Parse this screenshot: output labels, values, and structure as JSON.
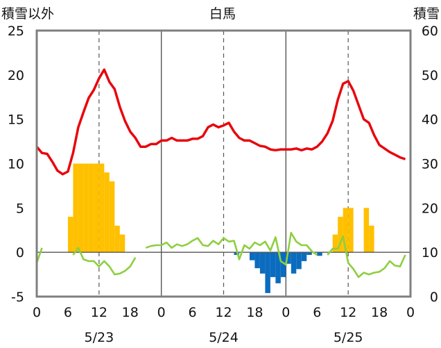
{
  "chart_data": {
    "type": "bar",
    "title": "白馬",
    "ylabel_left": "積雪以外",
    "ylabel_right": "積雪",
    "y_left": {
      "min": -5,
      "max": 25,
      "ticks": [
        "-5",
        "0",
        "5",
        "10",
        "15",
        "20",
        "25"
      ]
    },
    "y_right": {
      "min": 0,
      "max": 60,
      "ticks": [
        "0",
        "10",
        "20",
        "30",
        "40",
        "50",
        "60"
      ]
    },
    "x_hours": {
      "min": 0,
      "max": 72
    },
    "x_ticks": [
      {
        "hour": 0,
        "label": "0"
      },
      {
        "hour": 6,
        "label": "6"
      },
      {
        "hour": 12,
        "label": "12"
      },
      {
        "hour": 18,
        "label": "18"
      },
      {
        "hour": 24,
        "label": "0"
      },
      {
        "hour": 30,
        "label": "6"
      },
      {
        "hour": 36,
        "label": "12"
      },
      {
        "hour": 42,
        "label": "18"
      },
      {
        "hour": 48,
        "label": "0"
      },
      {
        "hour": 54,
        "label": "6"
      },
      {
        "hour": 60,
        "label": "12"
      },
      {
        "hour": 66,
        "label": "18"
      },
      {
        "hour": 72,
        "label": "0"
      }
    ],
    "date_labels": [
      {
        "hour": 12,
        "label": "5/23"
      },
      {
        "hour": 36,
        "label": "5/24"
      },
      {
        "hour": 60,
        "label": "5/25"
      }
    ],
    "day_boundaries": [
      24,
      48
    ],
    "dashed_hours": [
      12,
      36,
      60
    ],
    "colors": {
      "temperature": "#e8060c",
      "snow_depth": "#8dcf3f",
      "precip_positive": "#ffc000",
      "precip_negative": "#0b6cbf",
      "frame": "#7f7f7f",
      "grid": "#555555"
    },
    "series": [
      {
        "key": "temperature",
        "axis": "left",
        "style": "line",
        "points": [
          [
            0,
            11.9
          ],
          [
            1,
            11.2
          ],
          [
            2,
            11.1
          ],
          [
            3,
            10.2
          ],
          [
            4,
            9.2
          ],
          [
            5,
            8.8
          ],
          [
            6,
            9.1
          ],
          [
            7,
            11.2
          ],
          [
            8,
            14.1
          ],
          [
            9,
            15.8
          ],
          [
            10,
            17.4
          ],
          [
            11,
            18.3
          ],
          [
            12,
            19.6
          ],
          [
            13,
            20.6
          ],
          [
            14,
            19.2
          ],
          [
            15,
            18.4
          ],
          [
            16,
            16.4
          ],
          [
            17,
            14.8
          ],
          [
            18,
            13.6
          ],
          [
            19,
            12.9
          ],
          [
            20,
            11.9
          ],
          [
            21,
            11.9
          ],
          [
            22,
            12.2
          ],
          [
            23,
            12.2
          ],
          [
            24,
            12.6
          ],
          [
            25,
            12.6
          ],
          [
            26,
            12.9
          ],
          [
            27,
            12.6
          ],
          [
            28,
            12.6
          ],
          [
            29,
            12.6
          ],
          [
            30,
            12.8
          ],
          [
            31,
            12.8
          ],
          [
            32,
            13.1
          ],
          [
            33,
            14.1
          ],
          [
            34,
            14.4
          ],
          [
            35,
            14.1
          ],
          [
            36,
            14.3
          ],
          [
            37,
            14.6
          ],
          [
            38,
            13.6
          ],
          [
            39,
            12.9
          ],
          [
            40,
            12.6
          ],
          [
            41,
            12.6
          ],
          [
            42,
            12.3
          ],
          [
            43,
            12.0
          ],
          [
            44,
            11.9
          ],
          [
            45,
            11.6
          ],
          [
            46,
            11.5
          ],
          [
            47,
            11.6
          ],
          [
            48,
            11.6
          ],
          [
            49,
            11.6
          ],
          [
            50,
            11.7
          ],
          [
            51,
            11.5
          ],
          [
            52,
            11.7
          ],
          [
            53,
            11.6
          ],
          [
            54,
            11.9
          ],
          [
            55,
            12.5
          ],
          [
            56,
            13.4
          ],
          [
            57,
            14.8
          ],
          [
            58,
            17.2
          ],
          [
            59,
            19.0
          ],
          [
            60,
            19.3
          ],
          [
            61,
            18.2
          ],
          [
            62,
            16.6
          ],
          [
            63,
            15.0
          ],
          [
            64,
            14.6
          ],
          [
            65,
            13.2
          ],
          [
            66,
            12.1
          ],
          [
            67,
            11.7
          ],
          [
            68,
            11.3
          ],
          [
            69,
            11.0
          ],
          [
            70,
            10.7
          ],
          [
            71,
            10.5
          ]
        ]
      },
      {
        "key": "precip",
        "axis": "left",
        "style": "bars",
        "bars": [
          [
            6,
            4.0
          ],
          [
            7,
            10.0
          ],
          [
            8,
            10.0
          ],
          [
            9,
            10.0
          ],
          [
            10,
            10.0
          ],
          [
            11,
            10.0
          ],
          [
            12,
            10.0
          ],
          [
            13,
            9.0
          ],
          [
            14,
            8.0
          ],
          [
            15,
            3.0
          ],
          [
            16,
            2.0
          ],
          [
            38,
            -0.3
          ],
          [
            41,
            -0.9
          ],
          [
            42,
            -1.8
          ],
          [
            43,
            -2.4
          ],
          [
            44,
            -4.6
          ],
          [
            45,
            -2.8
          ],
          [
            46,
            -3.5
          ],
          [
            47,
            -2.8
          ],
          [
            48,
            -1.3
          ],
          [
            49,
            -2.4
          ],
          [
            50,
            -1.9
          ],
          [
            51,
            -1.0
          ],
          [
            52,
            -0.3
          ],
          [
            54,
            -0.4
          ],
          [
            57,
            2.0
          ],
          [
            58,
            4.0
          ],
          [
            59,
            5.0
          ],
          [
            60,
            5.0
          ],
          [
            63,
            5.0
          ],
          [
            64,
            3.0
          ]
        ]
      },
      {
        "key": "snow_depth",
        "axis": "left",
        "style": "line",
        "segments": [
          [
            [
              0,
              -1.2
            ],
            [
              1,
              0.5
            ]
          ],
          [
            [
              7,
              -0.3
            ],
            [
              8,
              0.5
            ],
            [
              9,
              -0.8
            ],
            [
              10,
              -1.0
            ],
            [
              11,
              -1.0
            ],
            [
              12,
              -1.6
            ],
            [
              13,
              -1.0
            ],
            [
              14,
              -1.6
            ],
            [
              15,
              -2.5
            ],
            [
              16,
              -2.4
            ],
            [
              17,
              -2.1
            ],
            [
              18,
              -1.6
            ],
            [
              19,
              -0.6
            ]
          ],
          [
            [
              21,
              0.5
            ],
            [
              22,
              0.7
            ],
            [
              23,
              0.8
            ],
            [
              24,
              0.8
            ],
            [
              25,
              1.1
            ],
            [
              26,
              0.5
            ],
            [
              27,
              0.9
            ],
            [
              28,
              0.7
            ],
            [
              29,
              0.9
            ],
            [
              30,
              1.3
            ],
            [
              31,
              1.6
            ],
            [
              32,
              0.8
            ],
            [
              33,
              0.7
            ],
            [
              34,
              1.3
            ],
            [
              35,
              0.9
            ],
            [
              36,
              1.6
            ],
            [
              37,
              1.2
            ],
            [
              38,
              1.3
            ],
            [
              39,
              -0.8
            ],
            [
              40,
              0.8
            ],
            [
              41,
              0.4
            ],
            [
              42,
              1.1
            ],
            [
              43,
              0.8
            ],
            [
              44,
              1.2
            ],
            [
              45,
              0.2
            ],
            [
              46,
              1.7
            ],
            [
              47,
              -1.0
            ],
            [
              48,
              -1.4
            ],
            [
              49,
              2.2
            ],
            [
              50,
              1.2
            ],
            [
              51,
              0.8
            ],
            [
              52,
              0.8
            ],
            [
              53,
              0.1
            ],
            [
              54,
              -0.3
            ]
          ],
          [
            [
              56,
              -0.3
            ],
            [
              57,
              0.4
            ],
            [
              58,
              0.4
            ],
            [
              59,
              1.8
            ],
            [
              60,
              -1.2
            ],
            [
              61,
              -1.9
            ],
            [
              62,
              -2.8
            ],
            [
              63,
              -2.3
            ],
            [
              64,
              -2.5
            ],
            [
              65,
              -2.3
            ],
            [
              66,
              -2.2
            ],
            [
              67,
              -1.8
            ],
            [
              68,
              -1.0
            ],
            [
              69,
              -1.5
            ],
            [
              70,
              -1.6
            ],
            [
              71,
              -0.3
            ]
          ]
        ]
      }
    ]
  }
}
